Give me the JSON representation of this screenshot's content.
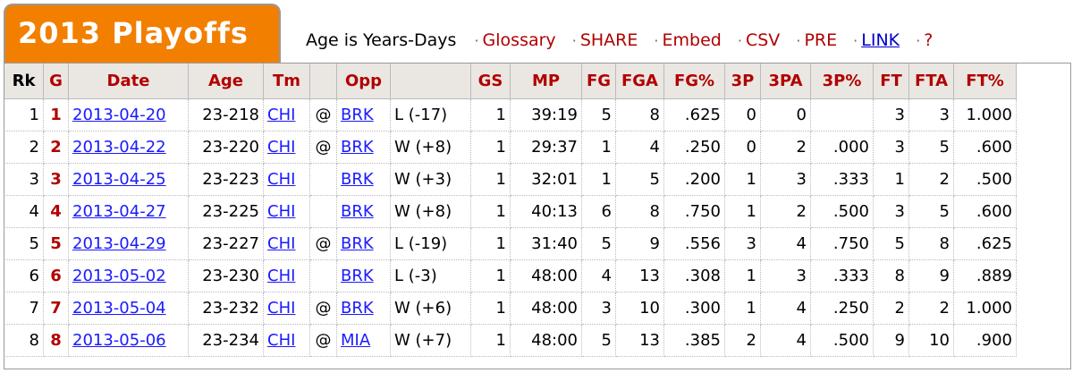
{
  "header": {
    "title": "2013 Playoffs",
    "age_note": "Age is Years-Days",
    "links": [
      {
        "label": "Glossary"
      },
      {
        "label": "SHARE"
      },
      {
        "label": "Embed"
      },
      {
        "label": "CSV"
      },
      {
        "label": "PRE"
      },
      {
        "label": "LINK"
      },
      {
        "label": "?"
      }
    ],
    "separator": "·"
  },
  "table": {
    "columns": [
      "Rk",
      "G",
      "Date",
      "Age",
      "Tm",
      "",
      "Opp",
      "",
      "GS",
      "MP",
      "FG",
      "FGA",
      "FG%",
      "3P",
      "3PA",
      "3P%",
      "FT",
      "FTA",
      "FT%"
    ],
    "rows": [
      [
        "1",
        "1",
        "2013-04-20",
        "23-218",
        "CHI",
        "@",
        "BRK",
        "L (-17)",
        "1",
        "39:19",
        "5",
        "8",
        ".625",
        "0",
        "0",
        "",
        "3",
        "3",
        "1.000"
      ],
      [
        "2",
        "2",
        "2013-04-22",
        "23-220",
        "CHI",
        "@",
        "BRK",
        "W (+8)",
        "1",
        "29:37",
        "1",
        "4",
        ".250",
        "0",
        "2",
        ".000",
        "3",
        "5",
        ".600"
      ],
      [
        "3",
        "3",
        "2013-04-25",
        "23-223",
        "CHI",
        "",
        "BRK",
        "W (+3)",
        "1",
        "32:01",
        "1",
        "5",
        ".200",
        "1",
        "3",
        ".333",
        "1",
        "2",
        ".500"
      ],
      [
        "4",
        "4",
        "2013-04-27",
        "23-225",
        "CHI",
        "",
        "BRK",
        "W (+8)",
        "1",
        "40:13",
        "6",
        "8",
        ".750",
        "1",
        "2",
        ".500",
        "3",
        "5",
        ".600"
      ],
      [
        "5",
        "5",
        "2013-04-29",
        "23-227",
        "CHI",
        "@",
        "BRK",
        "L (-19)",
        "1",
        "31:40",
        "5",
        "9",
        ".556",
        "3",
        "4",
        ".750",
        "5",
        "8",
        ".625"
      ],
      [
        "6",
        "6",
        "2013-05-02",
        "23-230",
        "CHI",
        "",
        "BRK",
        "L (-3)",
        "1",
        "48:00",
        "4",
        "13",
        ".308",
        "1",
        "3",
        ".333",
        "8",
        "9",
        ".889"
      ],
      [
        "7",
        "7",
        "2013-05-04",
        "23-232",
        "CHI",
        "@",
        "BRK",
        "W (+6)",
        "1",
        "48:00",
        "3",
        "10",
        ".300",
        "1",
        "4",
        ".250",
        "2",
        "2",
        "1.000"
      ],
      [
        "8",
        "8",
        "2013-05-06",
        "23-234",
        "CHI",
        "@",
        "MIA",
        "W (+7)",
        "1",
        "48:00",
        "5",
        "13",
        ".385",
        "2",
        "4",
        ".500",
        "9",
        "10",
        ".900"
      ]
    ]
  },
  "colors": {
    "tab_orange": "#f27f00",
    "header_red": "#b20000",
    "link_blue": "#1a1aff"
  }
}
